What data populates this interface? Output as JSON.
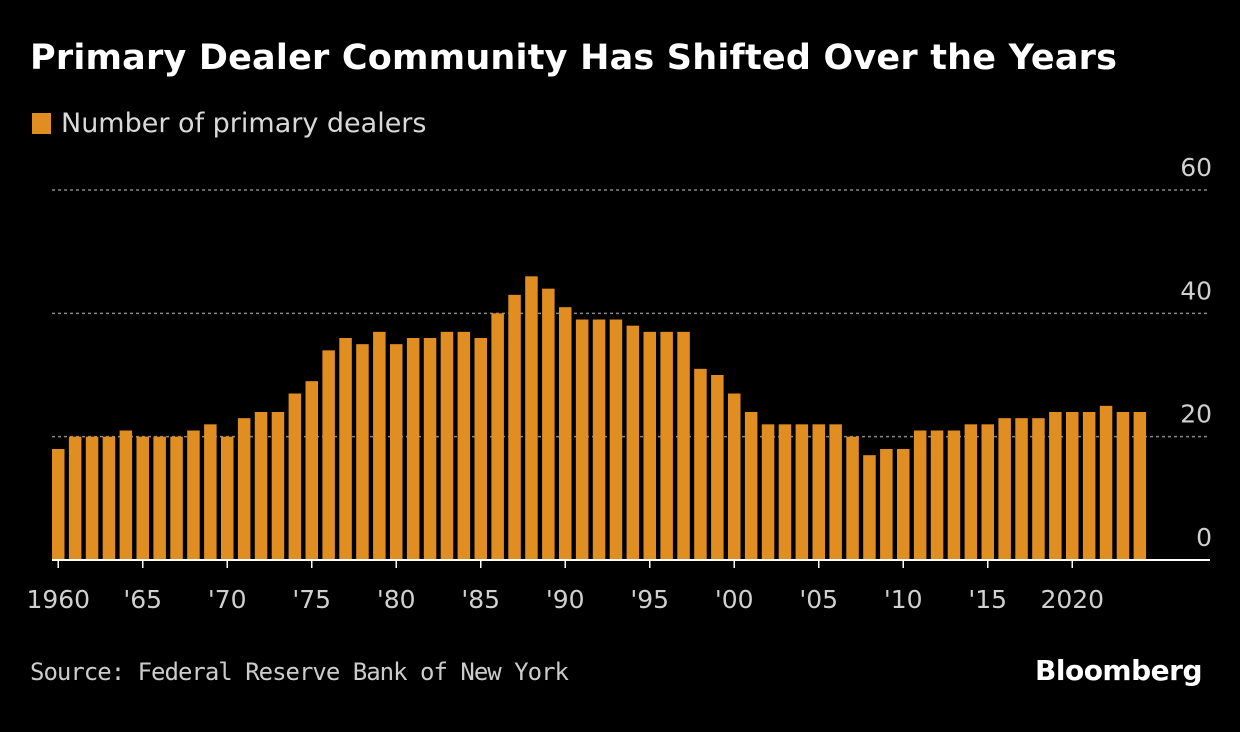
{
  "chart_data": {
    "type": "bar",
    "title": "Primary Dealer Community Has Shifted Over the Years",
    "legend": [
      "Number of primary dealers"
    ],
    "legend_position": "top-left",
    "series": [
      {
        "name": "Number of primary dealers",
        "x": [
          1960,
          1961,
          1962,
          1963,
          1964,
          1965,
          1966,
          1967,
          1968,
          1969,
          1970,
          1971,
          1972,
          1973,
          1974,
          1975,
          1976,
          1977,
          1978,
          1979,
          1980,
          1981,
          1982,
          1983,
          1984,
          1985,
          1986,
          1987,
          1988,
          1989,
          1990,
          1991,
          1992,
          1993,
          1994,
          1995,
          1996,
          1997,
          1998,
          1999,
          2000,
          2001,
          2002,
          2003,
          2004,
          2005,
          2006,
          2007,
          2008,
          2009,
          2010,
          2011,
          2012,
          2013,
          2014,
          2015,
          2016,
          2017,
          2018,
          2019,
          2020,
          2021,
          2022,
          2023,
          2024
        ],
        "values": [
          18,
          20,
          20,
          20,
          21,
          20,
          20,
          20,
          21,
          22,
          20,
          23,
          24,
          24,
          27,
          29,
          34,
          36,
          35,
          37,
          35,
          36,
          36,
          37,
          37,
          36,
          40,
          43,
          46,
          44,
          41,
          39,
          39,
          39,
          38,
          37,
          37,
          37,
          31,
          30,
          27,
          24,
          22,
          22,
          22,
          22,
          22,
          20,
          17,
          18,
          18,
          21,
          21,
          21,
          22,
          22,
          23,
          23,
          23,
          24,
          24,
          24,
          25,
          24,
          24
        ]
      }
    ],
    "x_tick_labels": [
      {
        "year": 1960,
        "label": "1960"
      },
      {
        "year": 1965,
        "label": "'65"
      },
      {
        "year": 1970,
        "label": "'70"
      },
      {
        "year": 1975,
        "label": "'75"
      },
      {
        "year": 1980,
        "label": "'80"
      },
      {
        "year": 1985,
        "label": "'85"
      },
      {
        "year": 1990,
        "label": "'90"
      },
      {
        "year": 1995,
        "label": "'95"
      },
      {
        "year": 2000,
        "label": "'00"
      },
      {
        "year": 2005,
        "label": "'05"
      },
      {
        "year": 2010,
        "label": "'10"
      },
      {
        "year": 2015,
        "label": "'15"
      },
      {
        "year": 2020,
        "label": "2020"
      }
    ],
    "y_ticks": [
      0,
      20,
      40,
      60
    ],
    "ylim": [
      0,
      60
    ],
    "xlabel": "",
    "ylabel": "",
    "grid": true,
    "colors": {
      "bar": "#e08e22",
      "grid": "#888888",
      "axis": "#ffffff",
      "tick_text": "#d0d0d0"
    }
  },
  "source": "Source: Federal Reserve Bank of New York",
  "brand": "Bloomberg"
}
